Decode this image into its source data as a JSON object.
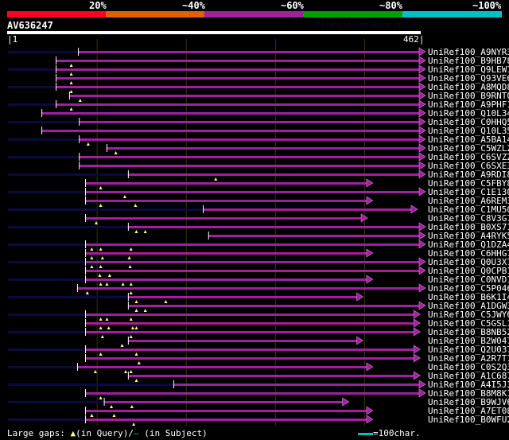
{
  "header": {
    "percent_labels": [
      "20%",
      "~40%",
      "~60%",
      "~80%",
      "~100%"
    ],
    "color_bands": [
      "#ff0022",
      "#e06000",
      "#a020a0",
      "#00a000",
      "#00c0c8"
    ],
    "query_name": "AV636247",
    "version": "AlignView.pm Beta rel.7",
    "query_start": "|1",
    "query_end": "462|",
    "query_length": 462
  },
  "colors": {
    "hit": "#a020a0",
    "unaligned": "#0a0a40",
    "gap_marker": "#ffff80",
    "grid": "#333300"
  },
  "grid_positions": [
    100,
    200,
    300,
    400
  ],
  "hits": [
    {
      "label": "UniRef100_A9NYR3",
      "start": 79,
      "end": 462,
      "gaps": []
    },
    {
      "label": "UniRef100_B9HB78",
      "start": 54,
      "end": 462,
      "gaps": [
        71
      ]
    },
    {
      "label": "UniRef100_Q9LEW1",
      "start": 54,
      "end": 462,
      "gaps": [
        71
      ]
    },
    {
      "label": "UniRef100_Q93VE6",
      "start": 54,
      "end": 462,
      "gaps": [
        71
      ]
    },
    {
      "label": "UniRef100_A8MQD8",
      "start": 54,
      "end": 462,
      "gaps": [
        71
      ]
    },
    {
      "label": "UniRef100_B9RNT0",
      "start": 69,
      "end": 462,
      "gaps": [
        81
      ]
    },
    {
      "label": "UniRef100_A9PHF1",
      "start": 54,
      "end": 462,
      "gaps": [
        71
      ]
    },
    {
      "label": "UniRef100_Q10L34",
      "start": 38,
      "end": 462,
      "gaps": []
    },
    {
      "label": "UniRef100_C0HHQ5",
      "start": 80,
      "end": 462,
      "gaps": []
    },
    {
      "label": "UniRef100_Q10L35",
      "start": 38,
      "end": 462,
      "gaps": []
    },
    {
      "label": "UniRef100_A5BA14",
      "start": 80,
      "end": 462,
      "gaps": [
        90
      ]
    },
    {
      "label": "UniRef100_C5WZL2",
      "start": 111,
      "end": 462,
      "gaps": [
        121
      ]
    },
    {
      "label": "UniRef100_C6SVZ2",
      "start": 80,
      "end": 462,
      "gaps": []
    },
    {
      "label": "UniRef100_C6SXE3",
      "start": 80,
      "end": 462,
      "gaps": []
    },
    {
      "label": "UniRef100_A9RDI8",
      "start": 135,
      "end": 462,
      "gaps": [
        233
      ]
    },
    {
      "label": "UniRef100_C5FBY8",
      "start": 87,
      "end": 403,
      "gaps": [
        104
      ]
    },
    {
      "label": "UniRef100_C1E130",
      "start": 87,
      "end": 462,
      "gaps": [
        131
      ]
    },
    {
      "label": "UniRef100_A6REM3",
      "start": 87,
      "end": 403,
      "gaps": [
        104,
        143
      ]
    },
    {
      "label": "UniRef100_C1MU50",
      "start": 219,
      "end": 453,
      "gaps": []
    },
    {
      "label": "UniRef100_C8V3G7",
      "start": 87,
      "end": 397,
      "gaps": [
        99
      ]
    },
    {
      "label": "UniRef100_B0XS71",
      "start": 135,
      "end": 462,
      "gaps": [
        144,
        154
      ]
    },
    {
      "label": "UniRef100_A4RYK5",
      "start": 225,
      "end": 462,
      "gaps": []
    },
    {
      "label": "UniRef100_Q1DZA4",
      "start": 87,
      "end": 462,
      "gaps": [
        94,
        104,
        138
      ]
    },
    {
      "label": "UniRef100_C6HHG7",
      "start": 87,
      "end": 403,
      "gaps": [
        94,
        106,
        136
      ]
    },
    {
      "label": "UniRef100_Q0U3X7",
      "start": 87,
      "end": 462,
      "gaps": [
        94,
        104,
        137
      ]
    },
    {
      "label": "UniRef100_Q0CPB1",
      "start": 87,
      "end": 462,
      "gaps": [
        103,
        114
      ]
    },
    {
      "label": "UniRef100_C0NVD1",
      "start": 87,
      "end": 403,
      "gaps": [
        104,
        111,
        129,
        138
      ]
    },
    {
      "label": "UniRef100_C5P046",
      "start": 78,
      "end": 462,
      "gaps": [
        89,
        138
      ]
    },
    {
      "label": "UniRef100_B6K1I4",
      "start": 135,
      "end": 392,
      "gaps": [
        144,
        177
      ]
    },
    {
      "label": "UniRef100_A1DGW3",
      "start": 135,
      "end": 462,
      "gaps": [
        144,
        154
      ]
    },
    {
      "label": "UniRef100_C5JWY6",
      "start": 87,
      "end": 456,
      "gaps": [
        104,
        111,
        138
      ]
    },
    {
      "label": "UniRef100_C5GSL1",
      "start": 87,
      "end": 456,
      "gaps": [
        104,
        113,
        140,
        144
      ]
    },
    {
      "label": "UniRef100_B8NB52",
      "start": 87,
      "end": 456,
      "gaps": [
        106,
        138
      ]
    },
    {
      "label": "UniRef100_B2W047",
      "start": 135,
      "end": 392,
      "gaps": [
        128
      ]
    },
    {
      "label": "UniRef100_Q2U037",
      "start": 87,
      "end": 456,
      "gaps": [
        104,
        144
      ]
    },
    {
      "label": "UniRef100_A2R7T1",
      "start": 87,
      "end": 456,
      "gaps": [
        147
      ]
    },
    {
      "label": "UniRef100_C0S2Q3",
      "start": 78,
      "end": 403,
      "gaps": [
        98,
        132,
        138
      ]
    },
    {
      "label": "UniRef100_A1C687",
      "start": 135,
      "end": 456,
      "gaps": [
        144
      ]
    },
    {
      "label": "UniRef100_A4I5J3",
      "start": 186,
      "end": 462,
      "gaps": []
    },
    {
      "label": "UniRef100_B8M8K1",
      "start": 87,
      "end": 462,
      "gaps": [
        104
      ]
    },
    {
      "label": "UniRef100_B9WJV6",
      "start": 108,
      "end": 376,
      "gaps": [
        116,
        139
      ]
    },
    {
      "label": "UniRef100_A7ET08",
      "start": 87,
      "end": 403,
      "gaps": [
        94,
        119
      ]
    },
    {
      "label": "UniRef100_B0WFU2",
      "start": 87,
      "end": 403,
      "gaps": [
        141
      ]
    }
  ],
  "legend": {
    "prefix": "Large gaps:",
    "query_marker": "▲",
    "query_text": "(in Query)/",
    "subject_marker": "–",
    "subject_text": " (in Subject)",
    "scale_text": "=100char."
  }
}
